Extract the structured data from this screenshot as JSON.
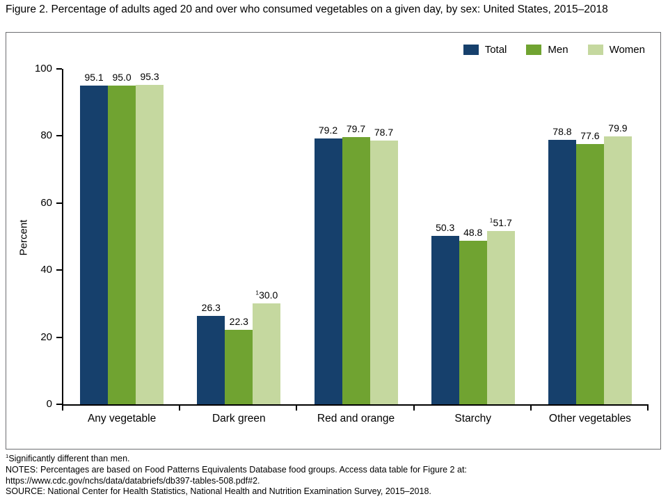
{
  "chart_data": {
    "type": "bar",
    "title": "Figure 2. Percentage of adults aged 20 and over who consumed vegetables on a given day, by sex: United States, 2015–2018",
    "xlabel": "",
    "ylabel": "Percent",
    "ylim": [
      0,
      100
    ],
    "yticks": [
      0,
      20,
      40,
      60,
      80,
      100
    ],
    "grid": false,
    "legend_position": "top-right",
    "categories": [
      "Any vegetable",
      "Dark green",
      "Red and orange",
      "Starchy",
      "Other vegetables"
    ],
    "series": [
      {
        "name": "Total",
        "color": "#16406c",
        "values": [
          95.1,
          26.3,
          79.2,
          50.3,
          78.8
        ],
        "labels": [
          "95.1",
          "26.3",
          "79.2",
          "50.3",
          "78.8"
        ],
        "sup": [
          "",
          "",
          "",
          "",
          ""
        ]
      },
      {
        "name": "Men",
        "color": "#70a331",
        "values": [
          95.0,
          22.3,
          79.7,
          48.8,
          77.6
        ],
        "labels": [
          "95.0",
          "22.3",
          "79.7",
          "48.8",
          "77.6"
        ],
        "sup": [
          "",
          "",
          "",
          "",
          ""
        ]
      },
      {
        "name": "Women",
        "color": "#c5d89f",
        "values": [
          95.3,
          30.0,
          78.7,
          51.7,
          79.9
        ],
        "labels": [
          "95.3",
          "30.0",
          "78.7",
          "51.7",
          "79.9"
        ],
        "sup": [
          "",
          "1",
          "",
          "1",
          ""
        ]
      }
    ]
  },
  "footnotes": {
    "sig_sup": "1",
    "sig": "Significantly different than men.",
    "notes": "NOTES: Percentages are based on Food Patterns Equivalents Database food groups. Access data table for Figure 2 at:",
    "url": "https://www.cdc.gov/nchs/data/databriefs/db397-tables-508.pdf#2.",
    "source": "SOURCE: National Center for Health Statistics, National Health and Nutrition Examination Survey, 2015–2018."
  }
}
